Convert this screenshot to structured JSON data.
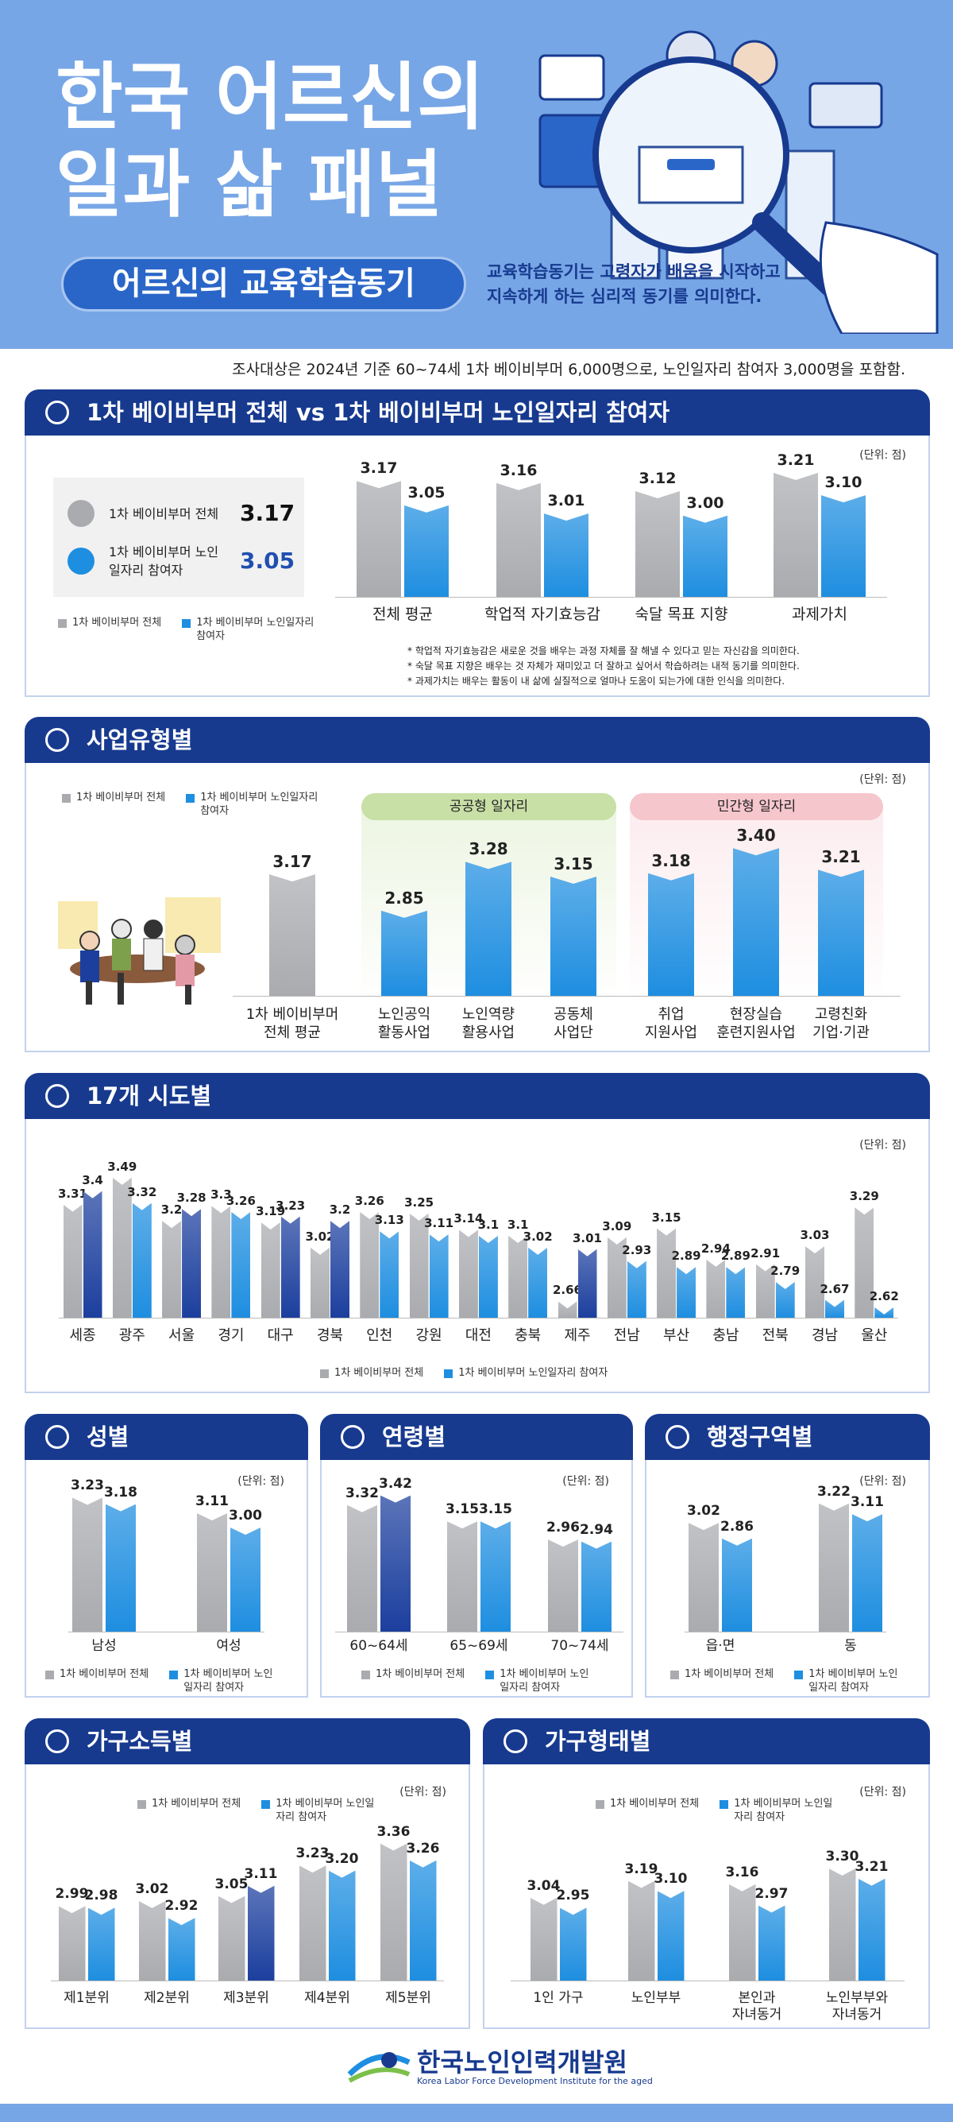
{
  "header": {
    "title_lines": [
      "한국 어르신의",
      "일과 삶 패널"
    ],
    "subtitle": "어르신의 교육학습동기",
    "description_lines": [
      "교육학습동기는 고령자가 배움을 시작하고",
      "지속하게 하는 심리적 동기를 의미한다."
    ],
    "survey_note": "조사대상은 2024년 기준 60~74세 1차 베이비부머 6,000명으로, 노인일자리 참여자 3,000명을 포함함."
  },
  "chart_data": [
    {
      "type": "bar",
      "title": "1차 베이비부머 전체 vs 1차 베이비부머 노인일자리 참여자",
      "unit": "(단위: 점)",
      "ylim": [
        2.6,
        3.3
      ],
      "summary_values": [
        3.17,
        3.05
      ],
      "categories": [
        "전체 평균",
        "학업적 자기효능감",
        "숙달 목표 지향",
        "과제가치"
      ],
      "series": [
        {
          "name": "1차 베이비부머 전체",
          "color": "#a9abaf",
          "values": [
            3.17,
            3.16,
            3.12,
            3.21
          ]
        },
        {
          "name": "1차 베이비부머 노인일자리 참여자",
          "color": "#1e8ee0",
          "values": [
            3.05,
            3.01,
            3.0,
            3.1
          ],
          "value_labels": [
            "3.05",
            "3.01",
            "3.00",
            "3.10"
          ]
        }
      ],
      "notes": [
        "* 학업적 자기효능감은 새로운 것을 배우는 과정 자체를 잘 해낼 수 있다고 믿는 자신감을 의미한다.",
        "* 숙달 목표 지향은 배우는 것 자체가 재미있고 더 잘하고 싶어서 학습하려는 내적 동기를 의미한다.",
        "* 과제가치는 배우는 활동이 내 삶에 실질적으로 얼마나 도움이 되는가에 대한 인식을 의미한다."
      ]
    },
    {
      "type": "bar",
      "title": "사업유형별",
      "unit": "(단위: 점)",
      "ylim": [
        2.1,
        3.5
      ],
      "categories": [
        "1차 베이비부머\n전체 평균",
        "노인공익\n활동사업",
        "노인역량\n활용사업",
        "공동체\n사업단",
        "취업\n지원사업",
        "현장실습\n훈련지원사업",
        "고령친화\n기업·기관"
      ],
      "groups": [
        {
          "label": "공공형 일자리",
          "color": "#c8e0a6"
        },
        {
          "label": "민간형 일자리",
          "color": "#f6c6cd"
        }
      ],
      "series": [
        {
          "name": "1차 베이비부머 전체",
          "color": "#a9abaf",
          "values": [
            3.17,
            null,
            null,
            null,
            null,
            null,
            null
          ]
        },
        {
          "name": "1차 베이비부머 노인일자리 참여자",
          "color": "#1e8ee0",
          "values": [
            null,
            2.85,
            3.28,
            3.15,
            3.18,
            3.4,
            3.21
          ],
          "value_labels": [
            null,
            "2.85",
            "3.28",
            "3.15",
            "3.18",
            "3.40",
            "3.21"
          ]
        }
      ]
    },
    {
      "type": "bar",
      "title": "17개 시도별",
      "unit": "(단위: 점)",
      "ylim": [
        2.55,
        3.5
      ],
      "categories": [
        "세종",
        "광주",
        "서울",
        "경기",
        "대구",
        "경북",
        "인천",
        "강원",
        "대전",
        "충북",
        "제주",
        "전남",
        "부산",
        "충남",
        "전북",
        "경남",
        "울산"
      ],
      "series": [
        {
          "name": "1차 베이비부머 전체",
          "color": "#a9abaf",
          "values": [
            3.31,
            3.49,
            3.2,
            3.3,
            3.19,
            3.02,
            3.26,
            3.25,
            3.14,
            3.1,
            2.66,
            3.09,
            3.15,
            2.94,
            2.91,
            3.03,
            3.29
          ]
        },
        {
          "name": "1차 베이비부머 노인일자리 참여자",
          "color": "#1e8ee0",
          "colors": [
            "#1c3f9e",
            "#1e8ee0",
            "#1c3f9e",
            "#1e8ee0",
            "#1c3f9e",
            "#1c3f9e",
            "#1e8ee0",
            "#1e8ee0",
            "#1e8ee0",
            "#1e8ee0",
            "#1c3f9e",
            "#1e8ee0",
            "#1e8ee0",
            "#1e8ee0",
            "#1e8ee0",
            "#1e8ee0",
            "#1e8ee0"
          ],
          "values": [
            3.4,
            3.32,
            3.28,
            3.26,
            3.23,
            3.2,
            3.13,
            3.11,
            3.1,
            3.02,
            3.01,
            2.93,
            2.89,
            2.89,
            2.79,
            2.67,
            2.62
          ]
        }
      ]
    },
    {
      "type": "bar",
      "title": "성별",
      "unit": "(단위: 점)",
      "ylim": [
        2.2,
        3.3
      ],
      "categories": [
        "남성",
        "여성"
      ],
      "series": [
        {
          "name": "1차 베이비부머 전체",
          "color": "#a9abaf",
          "values": [
            3.23,
            3.11
          ]
        },
        {
          "name": "1차 베이비부머 노인일자리 참여자",
          "color": "#1e8ee0",
          "values": [
            3.18,
            3.0
          ],
          "value_labels": [
            "3.18",
            "3.00"
          ]
        }
      ]
    },
    {
      "type": "bar",
      "title": "연령별",
      "unit": "(단위: 점)",
      "ylim": [
        2.0,
        3.5
      ],
      "categories": [
        "60~64세",
        "65~69세",
        "70~74세"
      ],
      "series": [
        {
          "name": "1차 베이비부머 전체",
          "color": "#a9abaf",
          "values": [
            3.32,
            3.15,
            2.96
          ]
        },
        {
          "name": "1차 베이비부머 노인일자리 참여자",
          "color": "#1e8ee0",
          "colors": [
            "#1c3f9e",
            "#1e8ee0",
            "#1e8ee0"
          ],
          "values": [
            3.42,
            3.15,
            2.94
          ]
        }
      ]
    },
    {
      "type": "bar",
      "title": "행정구역별",
      "unit": "(단위: 점)",
      "ylim": [
        1.9,
        3.3
      ],
      "categories": [
        "읍·면",
        "동"
      ],
      "series": [
        {
          "name": "1차 베이비부머 전체",
          "color": "#a9abaf",
          "values": [
            3.02,
            3.22
          ]
        },
        {
          "name": "1차 베이비부머 노인일자리 참여자",
          "color": "#1e8ee0",
          "values": [
            2.86,
            3.11
          ]
        }
      ]
    },
    {
      "type": "bar",
      "title": "가구소득별",
      "unit": "(단위: 점)",
      "ylim": [
        2.55,
        3.4
      ],
      "categories": [
        "제1분위",
        "제2분위",
        "제3분위",
        "제4분위",
        "제5분위"
      ],
      "series": [
        {
          "name": "1차 베이비부머 전체",
          "color": "#a9abaf",
          "values": [
            2.99,
            3.02,
            3.05,
            3.23,
            3.36
          ]
        },
        {
          "name": "1차 베이비부머 노인일자리 참여자",
          "color": "#1e8ee0",
          "colors": [
            "#1e8ee0",
            "#1e8ee0",
            "#1c3f9e",
            "#1e8ee0",
            "#1e8ee0"
          ],
          "values": [
            2.98,
            2.92,
            3.11,
            3.2,
            3.26
          ],
          "value_labels": [
            "2.98",
            "2.92",
            "3.11",
            "3.20",
            "3.26"
          ]
        }
      ]
    },
    {
      "type": "bar",
      "title": "가구형태별",
      "unit": "(단위: 점)",
      "ylim": [
        2.3,
        3.35
      ],
      "categories": [
        "1인 가구",
        "노인부부",
        "본인과\n자녀동거",
        "노인부부와\n자녀동거"
      ],
      "series": [
        {
          "name": "1차 베이비부머 전체",
          "color": "#a9abaf",
          "values": [
            3.04,
            3.19,
            3.16,
            3.3
          ],
          "value_labels": [
            "3.04",
            "3.19",
            "3.16",
            "3.30"
          ]
        },
        {
          "name": "1차 베이비부머 노인일자리 참여자",
          "color": "#1e8ee0",
          "values": [
            2.95,
            3.1,
            2.97,
            3.21
          ],
          "value_labels": [
            "2.95",
            "3.10",
            "2.97",
            "3.21"
          ]
        }
      ]
    }
  ],
  "footer": {
    "org": "한국노인인력개발원",
    "org_en": "Korea Labor Force Development Institute for the aged"
  }
}
